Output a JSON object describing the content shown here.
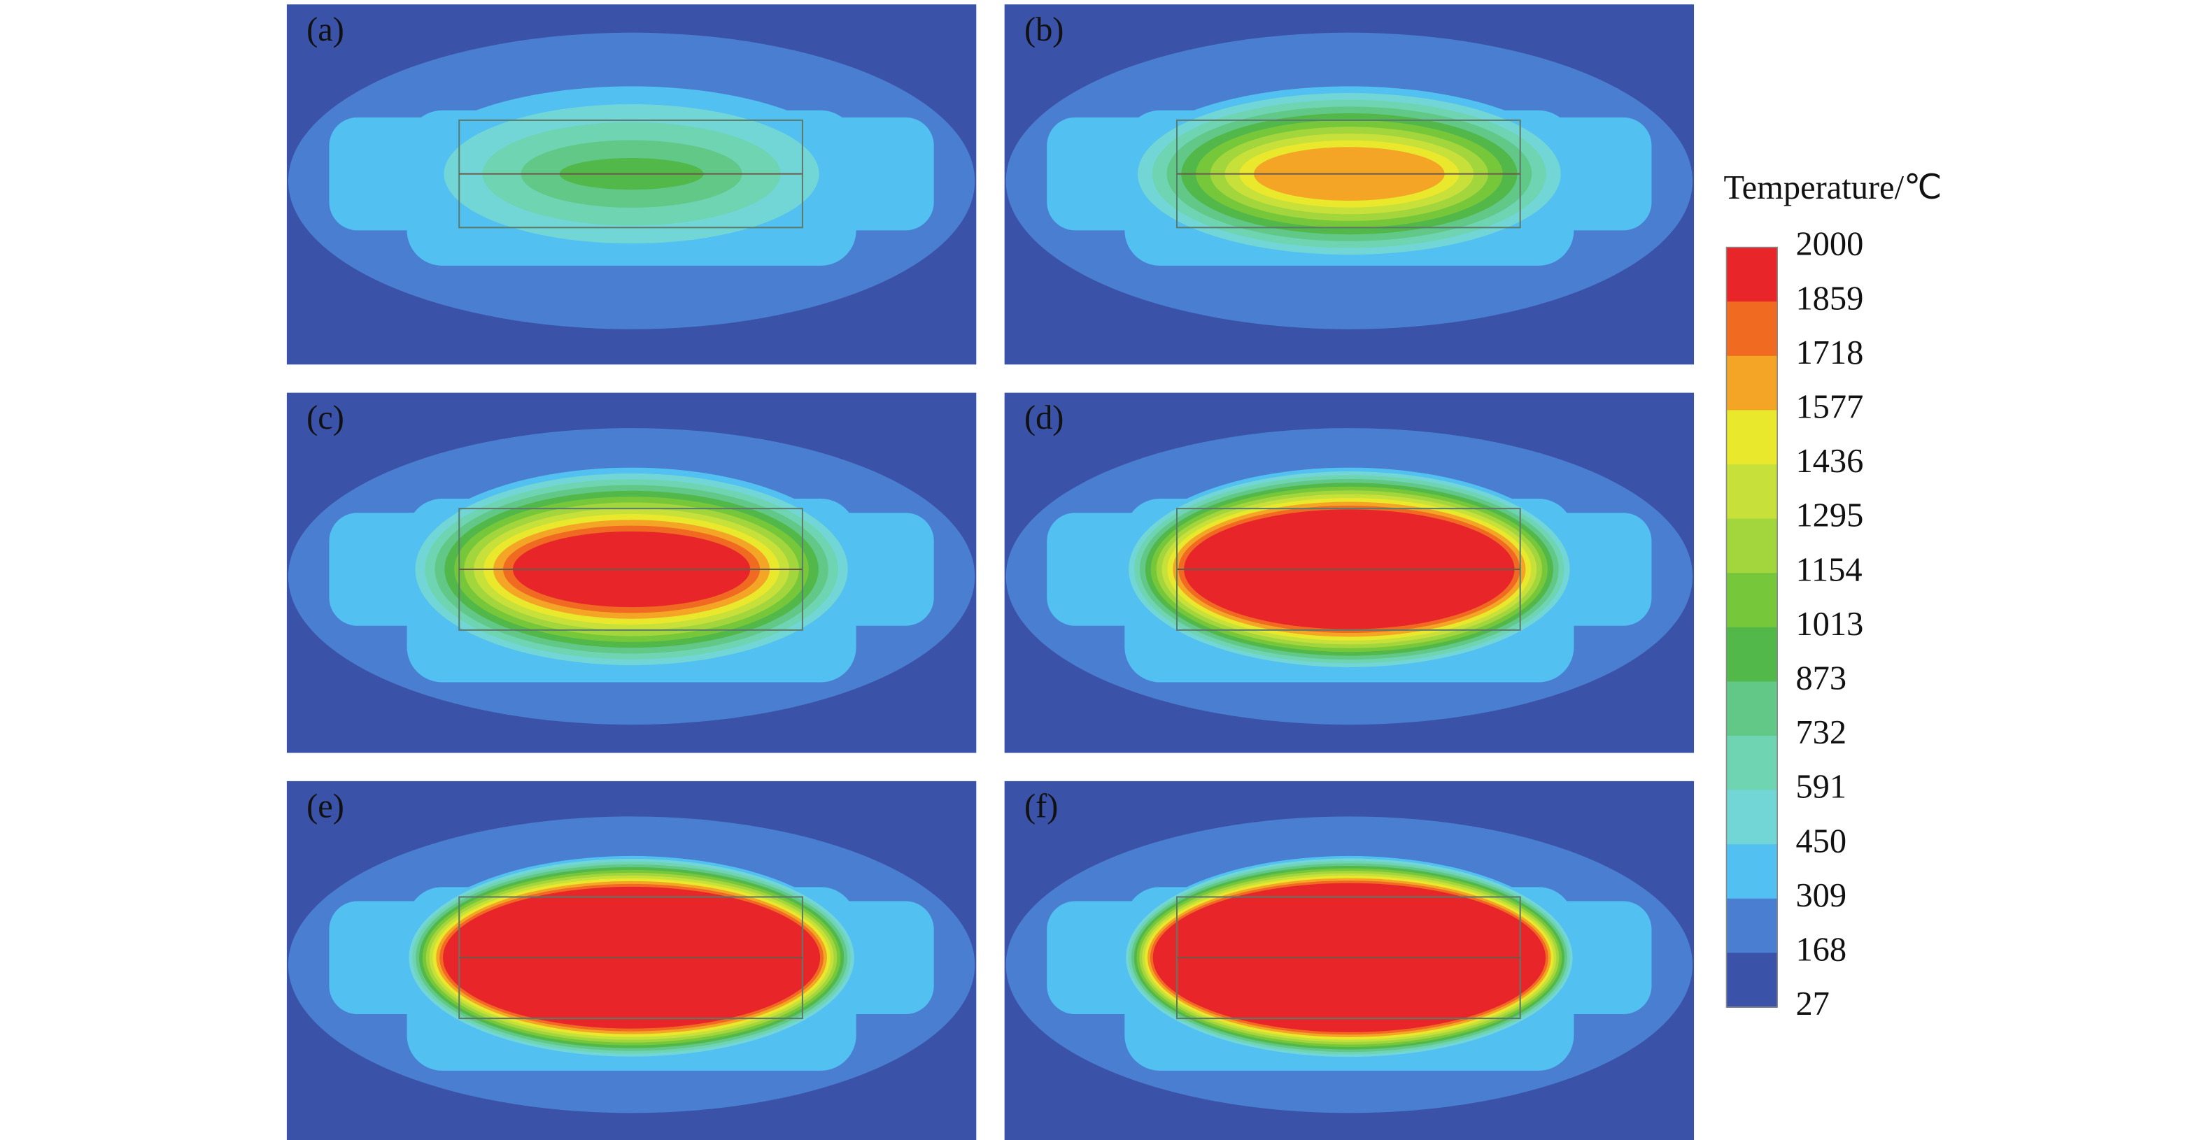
{
  "panels": [
    {
      "label": "(a)"
    },
    {
      "label": "(b)"
    },
    {
      "label": "(c)"
    },
    {
      "label": "(d)"
    },
    {
      "label": "(e)"
    },
    {
      "label": "(f)"
    }
  ],
  "colorbar": {
    "title": "Temperature/℃",
    "labels": [
      "2000",
      "1859",
      "1718",
      "1577",
      "1436",
      "1295",
      "1154",
      "1013",
      "873",
      "732",
      "591",
      "450",
      "309",
      "168",
      "27"
    ],
    "colors": [
      "#e8262a",
      "#f06a22",
      "#f4a526",
      "#e9e82c",
      "#c8e03a",
      "#a3d63c",
      "#76c83a",
      "#52b84a",
      "#62c888",
      "#6fd4b2",
      "#72d6d6",
      "#52c0f0",
      "#4a7ed0",
      "#3a52a8"
    ]
  }
}
